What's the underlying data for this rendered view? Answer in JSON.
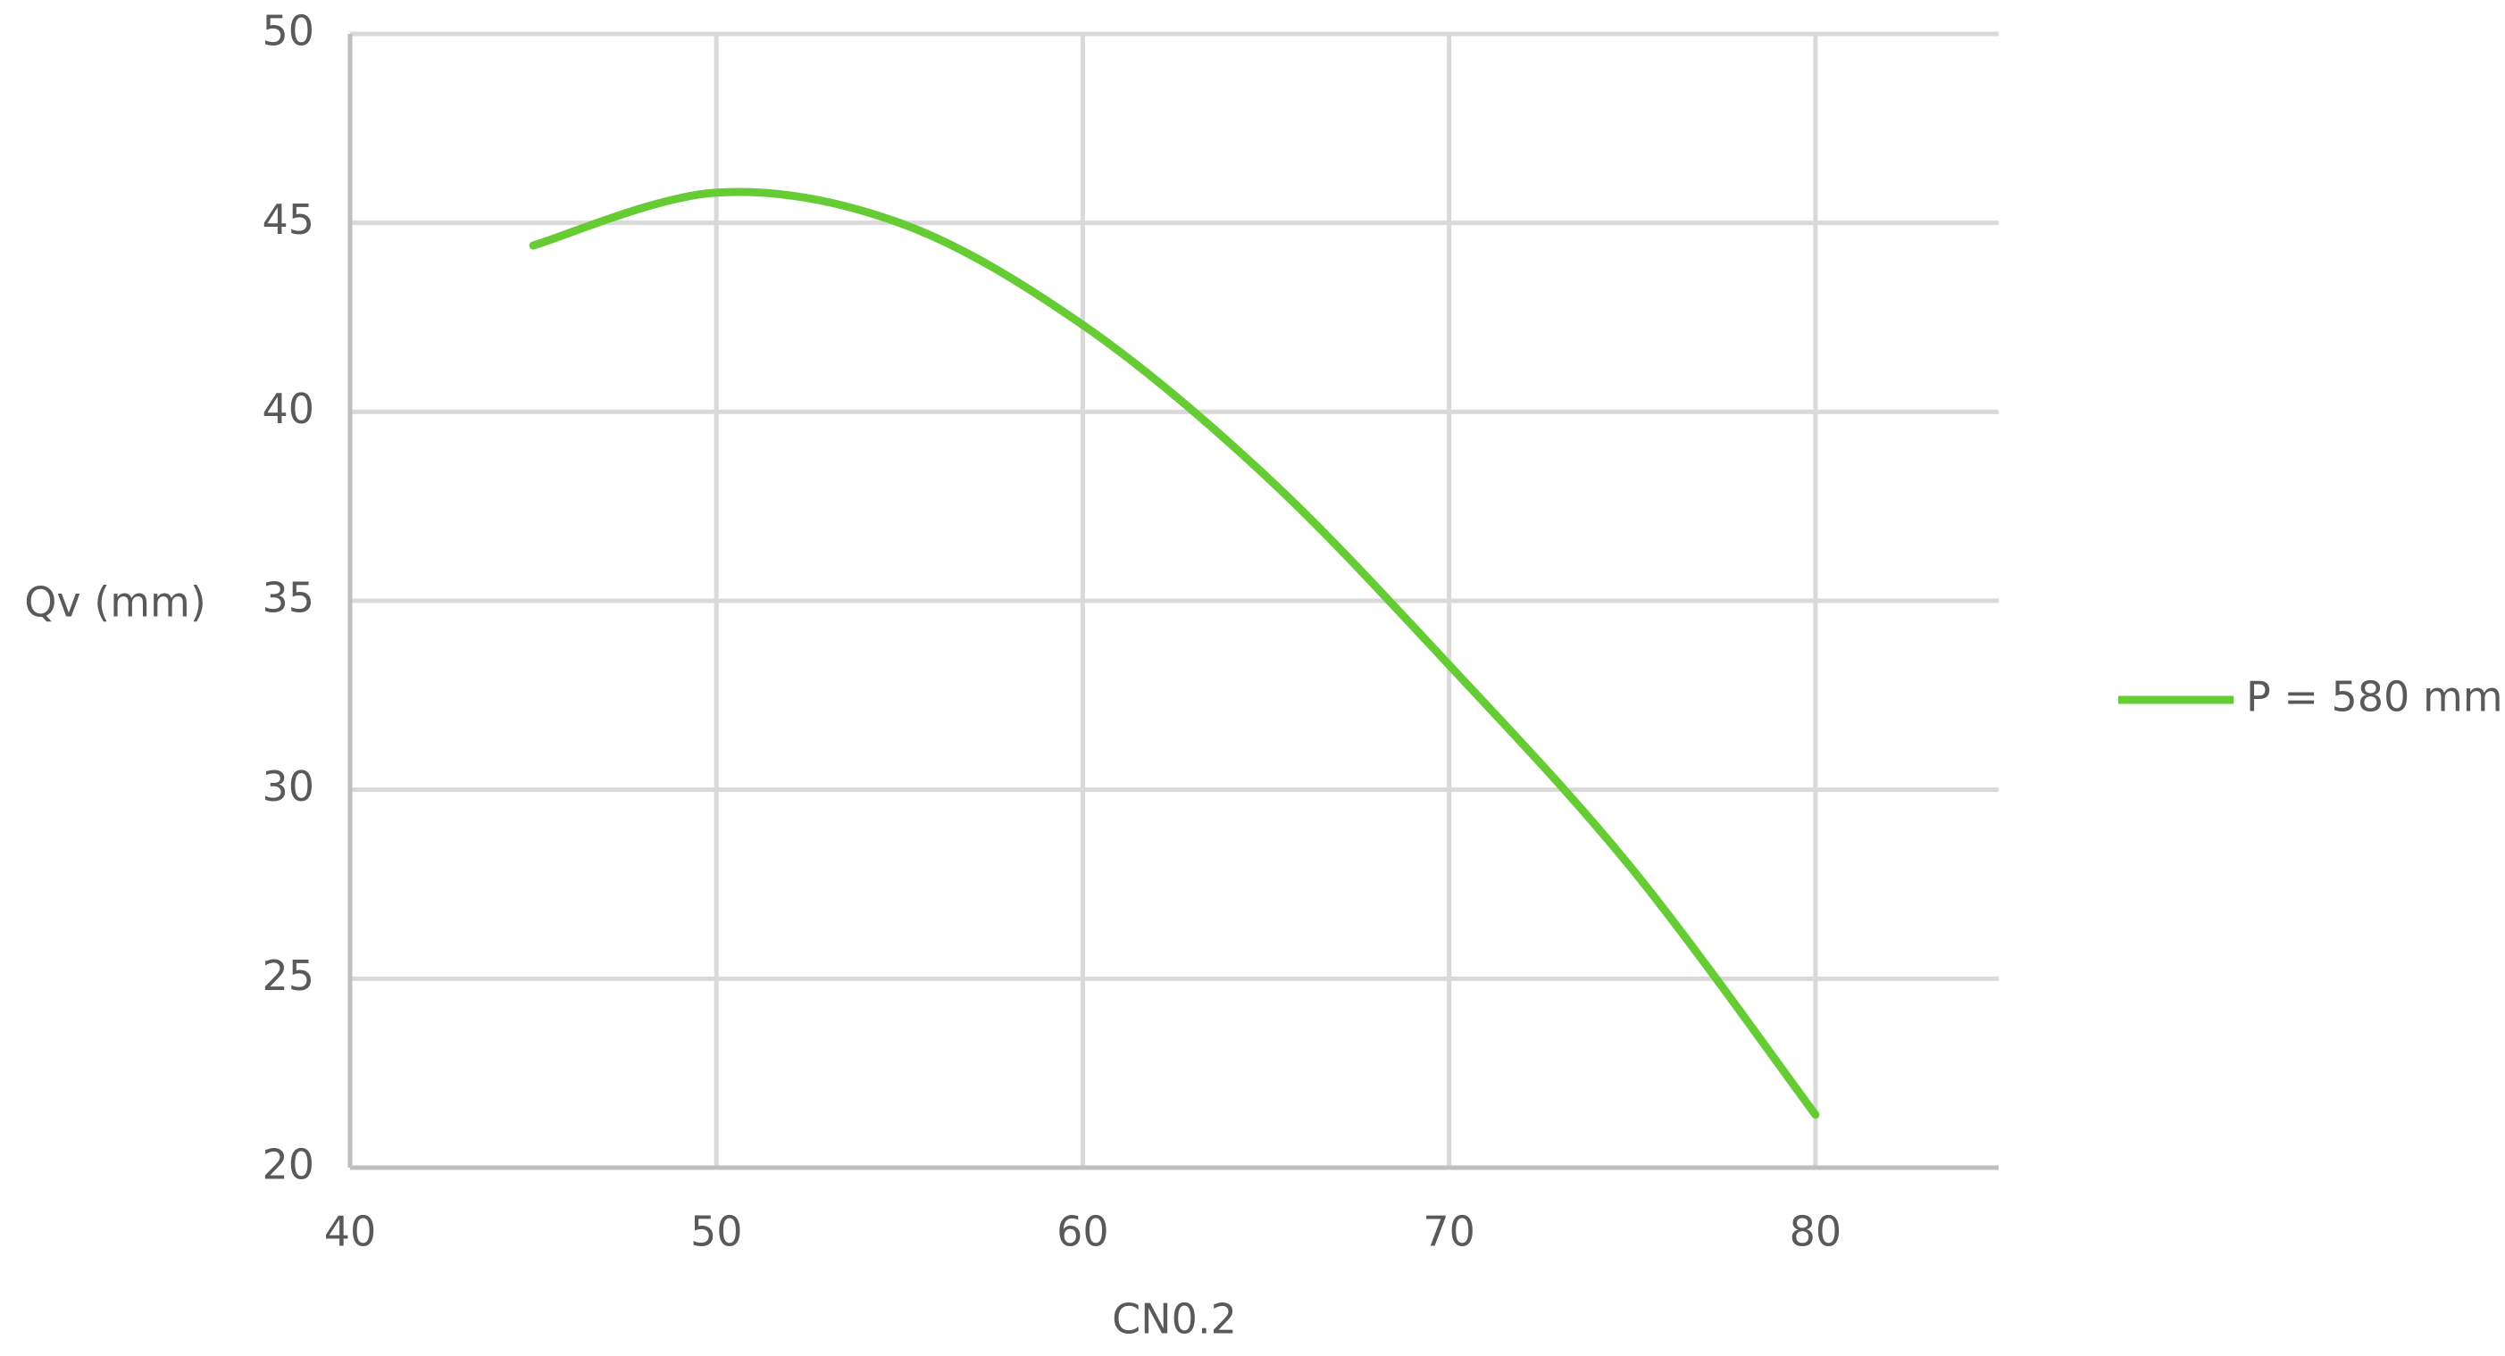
{
  "chart_data": {
    "type": "line",
    "x_label": "CN0.2",
    "y_label": "Qv (mm)",
    "series": [
      {
        "name": "P = 580 mm",
        "color": "#66cc33",
        "x": [
          45,
          50,
          55,
          60,
          65,
          70,
          75,
          80
        ],
        "values": [
          44.4,
          45.8,
          45.0,
          42.3,
          38.3,
          33.3,
          27.9,
          21.4
        ]
      }
    ],
    "xlim": [
      40,
      85
    ],
    "xticks": [
      40,
      50,
      60,
      70,
      80
    ],
    "ylim": [
      20,
      50
    ],
    "yticks": [
      20,
      25,
      30,
      35,
      40,
      45,
      50
    ],
    "grid": true,
    "legend": "right"
  }
}
